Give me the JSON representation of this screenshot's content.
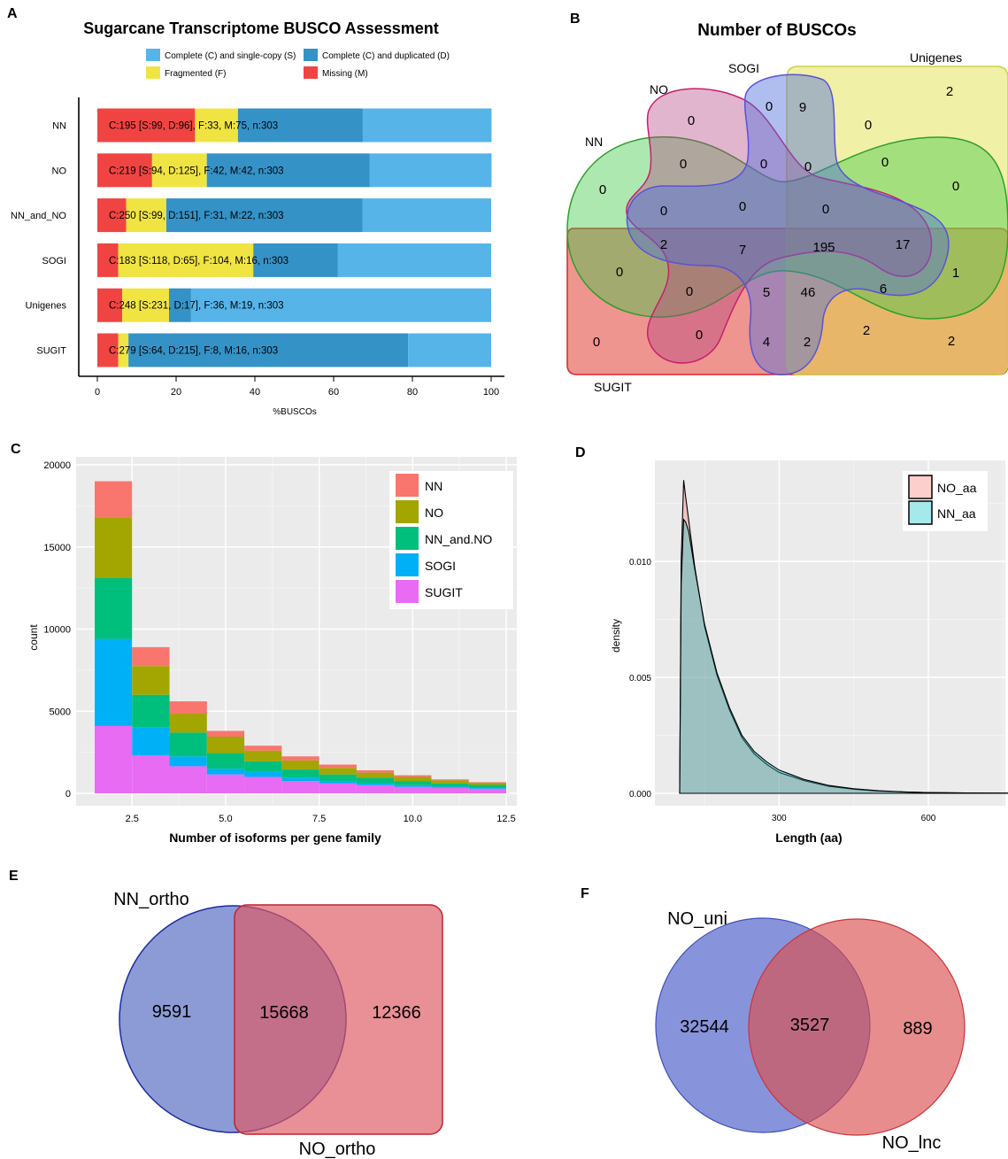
{
  "panel_labels": {
    "A": "A",
    "B": "B",
    "C": "C",
    "D": "D",
    "E": "E",
    "F": "F"
  },
  "colors": {
    "single": "#56B4E9",
    "duplicated": "#3492C7",
    "fragmented": "#F0E442",
    "missing": "#F04442",
    "nn": "#F8766D",
    "no": "#A3A500",
    "nn_and_no": "#00BF7D",
    "sogi": "#00B0F6",
    "sugit": "#E76BF3",
    "no_aa": "#F8766D",
    "nn_aa": "#00BFC4",
    "venn_blue": "#5A6FC8",
    "venn_red": "#E06060",
    "panel_bg": "#EBEBEB"
  },
  "chart_data": [
    {
      "type": "bar",
      "orientation": "horizontal-stacked",
      "title": "Sugarcane Transcriptome BUSCO Assessment",
      "xlabel": "%BUSCOs",
      "xlim": [
        0,
        100
      ],
      "xticks": [
        0,
        20,
        40,
        60,
        80,
        100
      ],
      "legend": [
        "Complete (C) and single-copy (S)",
        "Complete (C) and duplicated (D)",
        "Fragmented (F)",
        "Missing (M)"
      ],
      "categories": [
        "NN",
        "NO",
        "NN_and_NO",
        "SOGI",
        "Unigenes",
        "SUGIT"
      ],
      "series": [
        {
          "name": "Missing (M)",
          "values": [
            24.8,
            13.9,
            7.3,
            5.3,
            6.3,
            5.3
          ]
        },
        {
          "name": "Fragmented (F)",
          "values": [
            10.9,
            13.9,
            10.2,
            34.3,
            11.9,
            2.6
          ]
        },
        {
          "name": "Complete (C) and duplicated (D)",
          "values": [
            31.7,
            41.3,
            49.8,
            21.5,
            5.6,
            71.0
          ]
        },
        {
          "name": "Complete (C) and single-copy (S)",
          "values": [
            32.7,
            31.0,
            32.7,
            38.9,
            76.2,
            21.1
          ]
        }
      ],
      "bar_labels": [
        "C:195 [S:99, D:96], F:33, M:75, n:303",
        "C:219 [S:94, D:125], F:42, M:42, n:303",
        "C:250 [S:99, D:151], F:31, M:22, n:303",
        "C:183 [S:118, D:65], F:104, M:16, n:303",
        "C:248 [S:231, D:17], F:36, M:19, n:303",
        "C:279 [S:64, D:215], F:8, M:16, n:303"
      ]
    },
    {
      "type": "venn",
      "title": "Number of BUSCOs",
      "sets": [
        "NN",
        "NO",
        "SOGI",
        "Unigenes",
        "SUGIT"
      ],
      "region_values": [
        "2",
        "9",
        "0",
        "0",
        "0",
        "0",
        "0",
        "0",
        "0",
        "0",
        "0",
        "0",
        "0",
        "2",
        "7",
        "195",
        "17",
        "0",
        "1",
        "0",
        "5",
        "46",
        "6",
        "0",
        "0",
        "0",
        "4",
        "2",
        "2",
        "2"
      ]
    },
    {
      "type": "bar",
      "orientation": "vertical-stacked",
      "xlabel": "Number of isoforms per gene family",
      "ylabel": "count",
      "x": [
        2,
        3,
        4,
        5,
        6,
        7,
        8,
        9,
        10,
        11,
        12
      ],
      "xticks": [
        2.5,
        5.0,
        7.5,
        10.0,
        12.5
      ],
      "xlim": [
        1.5,
        12.5
      ],
      "ylim": [
        0,
        20000
      ],
      "yticks": [
        0,
        5000,
        10000,
        15000,
        20000
      ],
      "legend": [
        "NN",
        "NO",
        "NN_and.NO",
        "SOGI",
        "SUGIT"
      ],
      "series": [
        {
          "name": "SUGIT",
          "values": [
            4100,
            2300,
            1650,
            1150,
            1000,
            750,
            600,
            500,
            400,
            330,
            280
          ]
        },
        {
          "name": "SOGI",
          "values": [
            5300,
            1700,
            600,
            350,
            300,
            200,
            150,
            120,
            100,
            80,
            70
          ]
        },
        {
          "name": "NN_and.NO",
          "values": [
            3700,
            2000,
            1450,
            950,
            650,
            500,
            400,
            320,
            250,
            200,
            160
          ]
        },
        {
          "name": "NO",
          "values": [
            3700,
            1750,
            1150,
            1000,
            650,
            550,
            400,
            320,
            250,
            180,
            130
          ]
        },
        {
          "name": "NN",
          "values": [
            2200,
            1150,
            750,
            350,
            300,
            250,
            200,
            140,
            100,
            60,
            40
          ]
        }
      ]
    },
    {
      "type": "area",
      "subtype": "density",
      "xlabel": "Length (aa)",
      "ylabel": "density",
      "xlim": [
        0,
        780
      ],
      "xticks": [
        300,
        600
      ],
      "ylim": [
        0,
        0.0142
      ],
      "yticks": [
        "0.000",
        "0.005",
        "0.010"
      ],
      "legend": [
        "NO_aa",
        "NN_aa"
      ],
      "series": [
        {
          "name": "NO_aa",
          "x": [
            100,
            103,
            108,
            112,
            118,
            130,
            150,
            175,
            200,
            225,
            250,
            275,
            300,
            350,
            400,
            450,
            500,
            550,
            600,
            700,
            780
          ],
          "y": [
            0,
            0.01,
            0.0135,
            0.0128,
            0.0118,
            0.0098,
            0.0072,
            0.0051,
            0.0036,
            0.0024,
            0.0017,
            0.00125,
            0.0009,
            0.00055,
            0.0003,
            0.00018,
            0.0001,
            6e-05,
            3e-05,
            1e-05,
            4e-06
          ]
        },
        {
          "name": "NN_aa",
          "x": [
            100,
            103,
            108,
            112,
            118,
            130,
            150,
            175,
            200,
            225,
            250,
            275,
            300,
            350,
            400,
            450,
            500,
            550,
            600,
            700,
            780
          ],
          "y": [
            0,
            0.009,
            0.0118,
            0.0117,
            0.0113,
            0.0097,
            0.0073,
            0.0052,
            0.0037,
            0.0025,
            0.0018,
            0.00135,
            0.001,
            0.0006,
            0.00034,
            0.0002,
            0.00011,
            6e-05,
            3e-05,
            1e-05,
            4e-06
          ]
        }
      ]
    },
    {
      "type": "venn",
      "sets": [
        "NN_ortho",
        "NO_ortho"
      ],
      "values": {
        "only_a": "9591",
        "both": "15668",
        "only_b": "12366"
      }
    },
    {
      "type": "venn",
      "sets": [
        "NO_uni",
        "NO_lnc"
      ],
      "values": {
        "only_a": "32544",
        "both": "3527",
        "only_b": "889"
      }
    }
  ]
}
